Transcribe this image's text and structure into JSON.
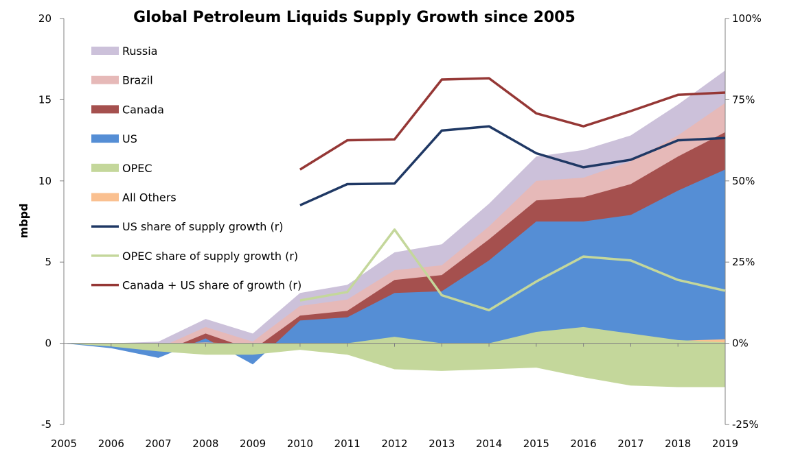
{
  "chart_data": {
    "type": "area",
    "title": "Global Petroleum Liquids Supply Growth since 2005",
    "ylabel": "mbpd",
    "ylim": [
      -5,
      20
    ],
    "yticks": [
      -5,
      0,
      5,
      10,
      15,
      20
    ],
    "ytick_labels": [
      "-5",
      "0",
      "5",
      "10",
      "15",
      "20"
    ],
    "y2lim": [
      -25,
      100
    ],
    "y2ticks": [
      -25,
      0,
      25,
      50,
      75,
      100
    ],
    "y2tick_labels": [
      "-25%",
      "0%",
      "25%",
      "50%",
      "75%",
      "100%"
    ],
    "x": [
      "2005",
      "2006",
      "2007",
      "2008",
      "2009",
      "2010",
      "2011",
      "2012",
      "2013",
      "2014",
      "2015",
      "2016",
      "2017",
      "2018",
      "2019"
    ],
    "area_series": [
      {
        "name": "OPEC",
        "color": "#c4d79b",
        "baseline": "zero",
        "values": [
          0,
          -0.2,
          -0.5,
          -0.7,
          -0.7,
          -0.4,
          -0.7,
          -1.6,
          -1.7,
          -1.6,
          -1.5,
          -2.1,
          -2.6,
          -2.7,
          -2.7
        ]
      },
      {
        "name": "OPEC",
        "color": "#c4d79b",
        "baseline": "zero",
        "values": [
          0,
          0,
          0,
          0,
          0,
          0,
          0,
          0.4,
          0,
          0,
          0.7,
          1.0,
          0.6,
          0.2,
          0.05
        ]
      },
      {
        "name": "All Others",
        "color": "#fac090",
        "values": [
          0,
          -0.05,
          -0.05,
          0.05,
          -0.05,
          -0.05,
          0,
          0,
          0,
          0,
          0,
          0,
          0,
          0.15,
          0.25
        ]
      },
      {
        "name": "US",
        "color": "#558ed5",
        "values": [
          0,
          -0.3,
          -0.9,
          0.3,
          -1.3,
          1.4,
          1.6,
          3.1,
          3.2,
          5.1,
          7.5,
          7.5,
          7.9,
          9.4,
          10.7
        ]
      },
      {
        "name": "Canada",
        "color": "#a5504e",
        "values": [
          0,
          -0.25,
          -0.6,
          0.6,
          -0.4,
          1.7,
          2.0,
          3.9,
          4.2,
          6.4,
          8.8,
          9.0,
          9.8,
          11.5,
          13.0
        ]
      },
      {
        "name": "Brazil",
        "color": "#e6b9b8",
        "values": [
          0,
          -0.2,
          -0.3,
          1.0,
          0.1,
          2.3,
          2.7,
          4.5,
          4.8,
          7.2,
          10.0,
          10.2,
          11.2,
          12.8,
          14.8
        ]
      },
      {
        "name": "Russia",
        "color": "#ccc1da",
        "values": [
          0,
          0,
          0.1,
          1.5,
          0.6,
          3.1,
          3.6,
          5.6,
          6.1,
          8.6,
          11.5,
          11.9,
          12.8,
          14.7,
          16.8
        ]
      }
    ],
    "line_series": [
      {
        "name": "US share of supply growth (r)",
        "axis": "right",
        "color": "#1f3864",
        "x": [
          "2010",
          "2011",
          "2012",
          "2013",
          "2014",
          "2015",
          "2016",
          "2017",
          "2018",
          "2019"
        ],
        "values": [
          42.5,
          49,
          49.2,
          65.5,
          66.8,
          58.5,
          54.2,
          56.5,
          62.5,
          63.2
        ]
      },
      {
        "name": "OPEC share of supply growth (r)",
        "axis": "right",
        "color": "#c4d79b",
        "x": [
          "2010",
          "2011",
          "2012",
          "2013",
          "2014",
          "2015",
          "2016",
          "2017",
          "2018",
          "2019"
        ],
        "values": [
          13.2,
          15.8,
          35,
          14.8,
          10.2,
          19,
          26.7,
          25.5,
          19.5,
          16.2
        ]
      },
      {
        "name": "Canada + US share of growth (r)",
        "axis": "right",
        "color": "#953735",
        "x": [
          "2010",
          "2011",
          "2012",
          "2013",
          "2014",
          "2015",
          "2016",
          "2017",
          "2018",
          "2019"
        ],
        "values": [
          53.5,
          62.5,
          62.8,
          81.2,
          81.6,
          70.8,
          66.8,
          71.5,
          76.5,
          77.2
        ]
      }
    ],
    "legend": [
      {
        "label": "Russia",
        "kind": "area",
        "color": "#ccc1da"
      },
      {
        "label": "Brazil",
        "kind": "area",
        "color": "#e6b9b8"
      },
      {
        "label": "Canada",
        "kind": "area",
        "color": "#a5504e"
      },
      {
        "label": "US",
        "kind": "area",
        "color": "#558ed5"
      },
      {
        "label": "OPEC",
        "kind": "area",
        "color": "#c4d79b"
      },
      {
        "label": "All Others",
        "kind": "area",
        "color": "#fac090"
      },
      {
        "label": "US share of supply growth (r)",
        "kind": "line",
        "color": "#1f3864"
      },
      {
        "label": "OPEC share of supply growth (r)",
        "kind": "line",
        "color": "#c4d79b"
      },
      {
        "label": "Canada + US share of growth (r)",
        "kind": "line",
        "color": "#953735"
      }
    ],
    "legend_position": "top-left",
    "grid": false
  }
}
